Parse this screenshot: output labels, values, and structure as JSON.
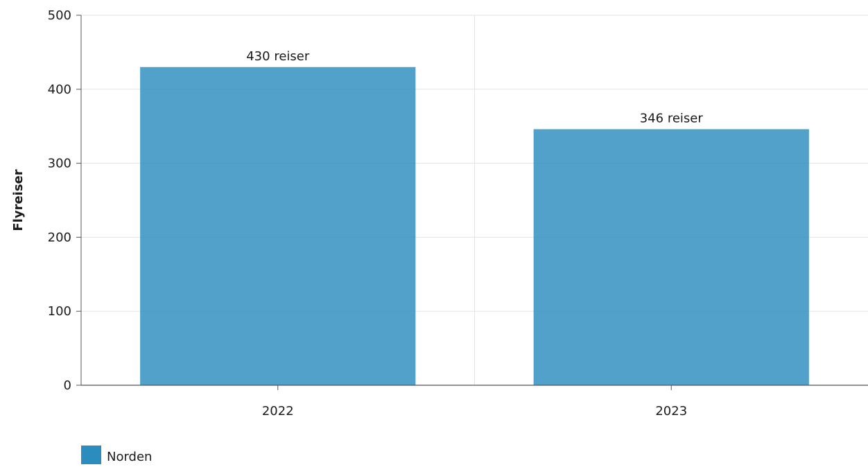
{
  "chart_data": {
    "type": "bar",
    "categories": [
      "2022",
      "2023"
    ],
    "series": [
      {
        "name": "Norden",
        "values": [
          430,
          346
        ],
        "value_labels": [
          "430 reiser",
          "346 reiser"
        ],
        "color": "#2b8cbe"
      }
    ],
    "xlabel": "",
    "ylabel": "Flyreiser",
    "ylim": [
      0,
      500
    ],
    "y_ticks": [
      0,
      100,
      200,
      300,
      400,
      500
    ],
    "grid": true,
    "legend_position": "bottom-left"
  }
}
